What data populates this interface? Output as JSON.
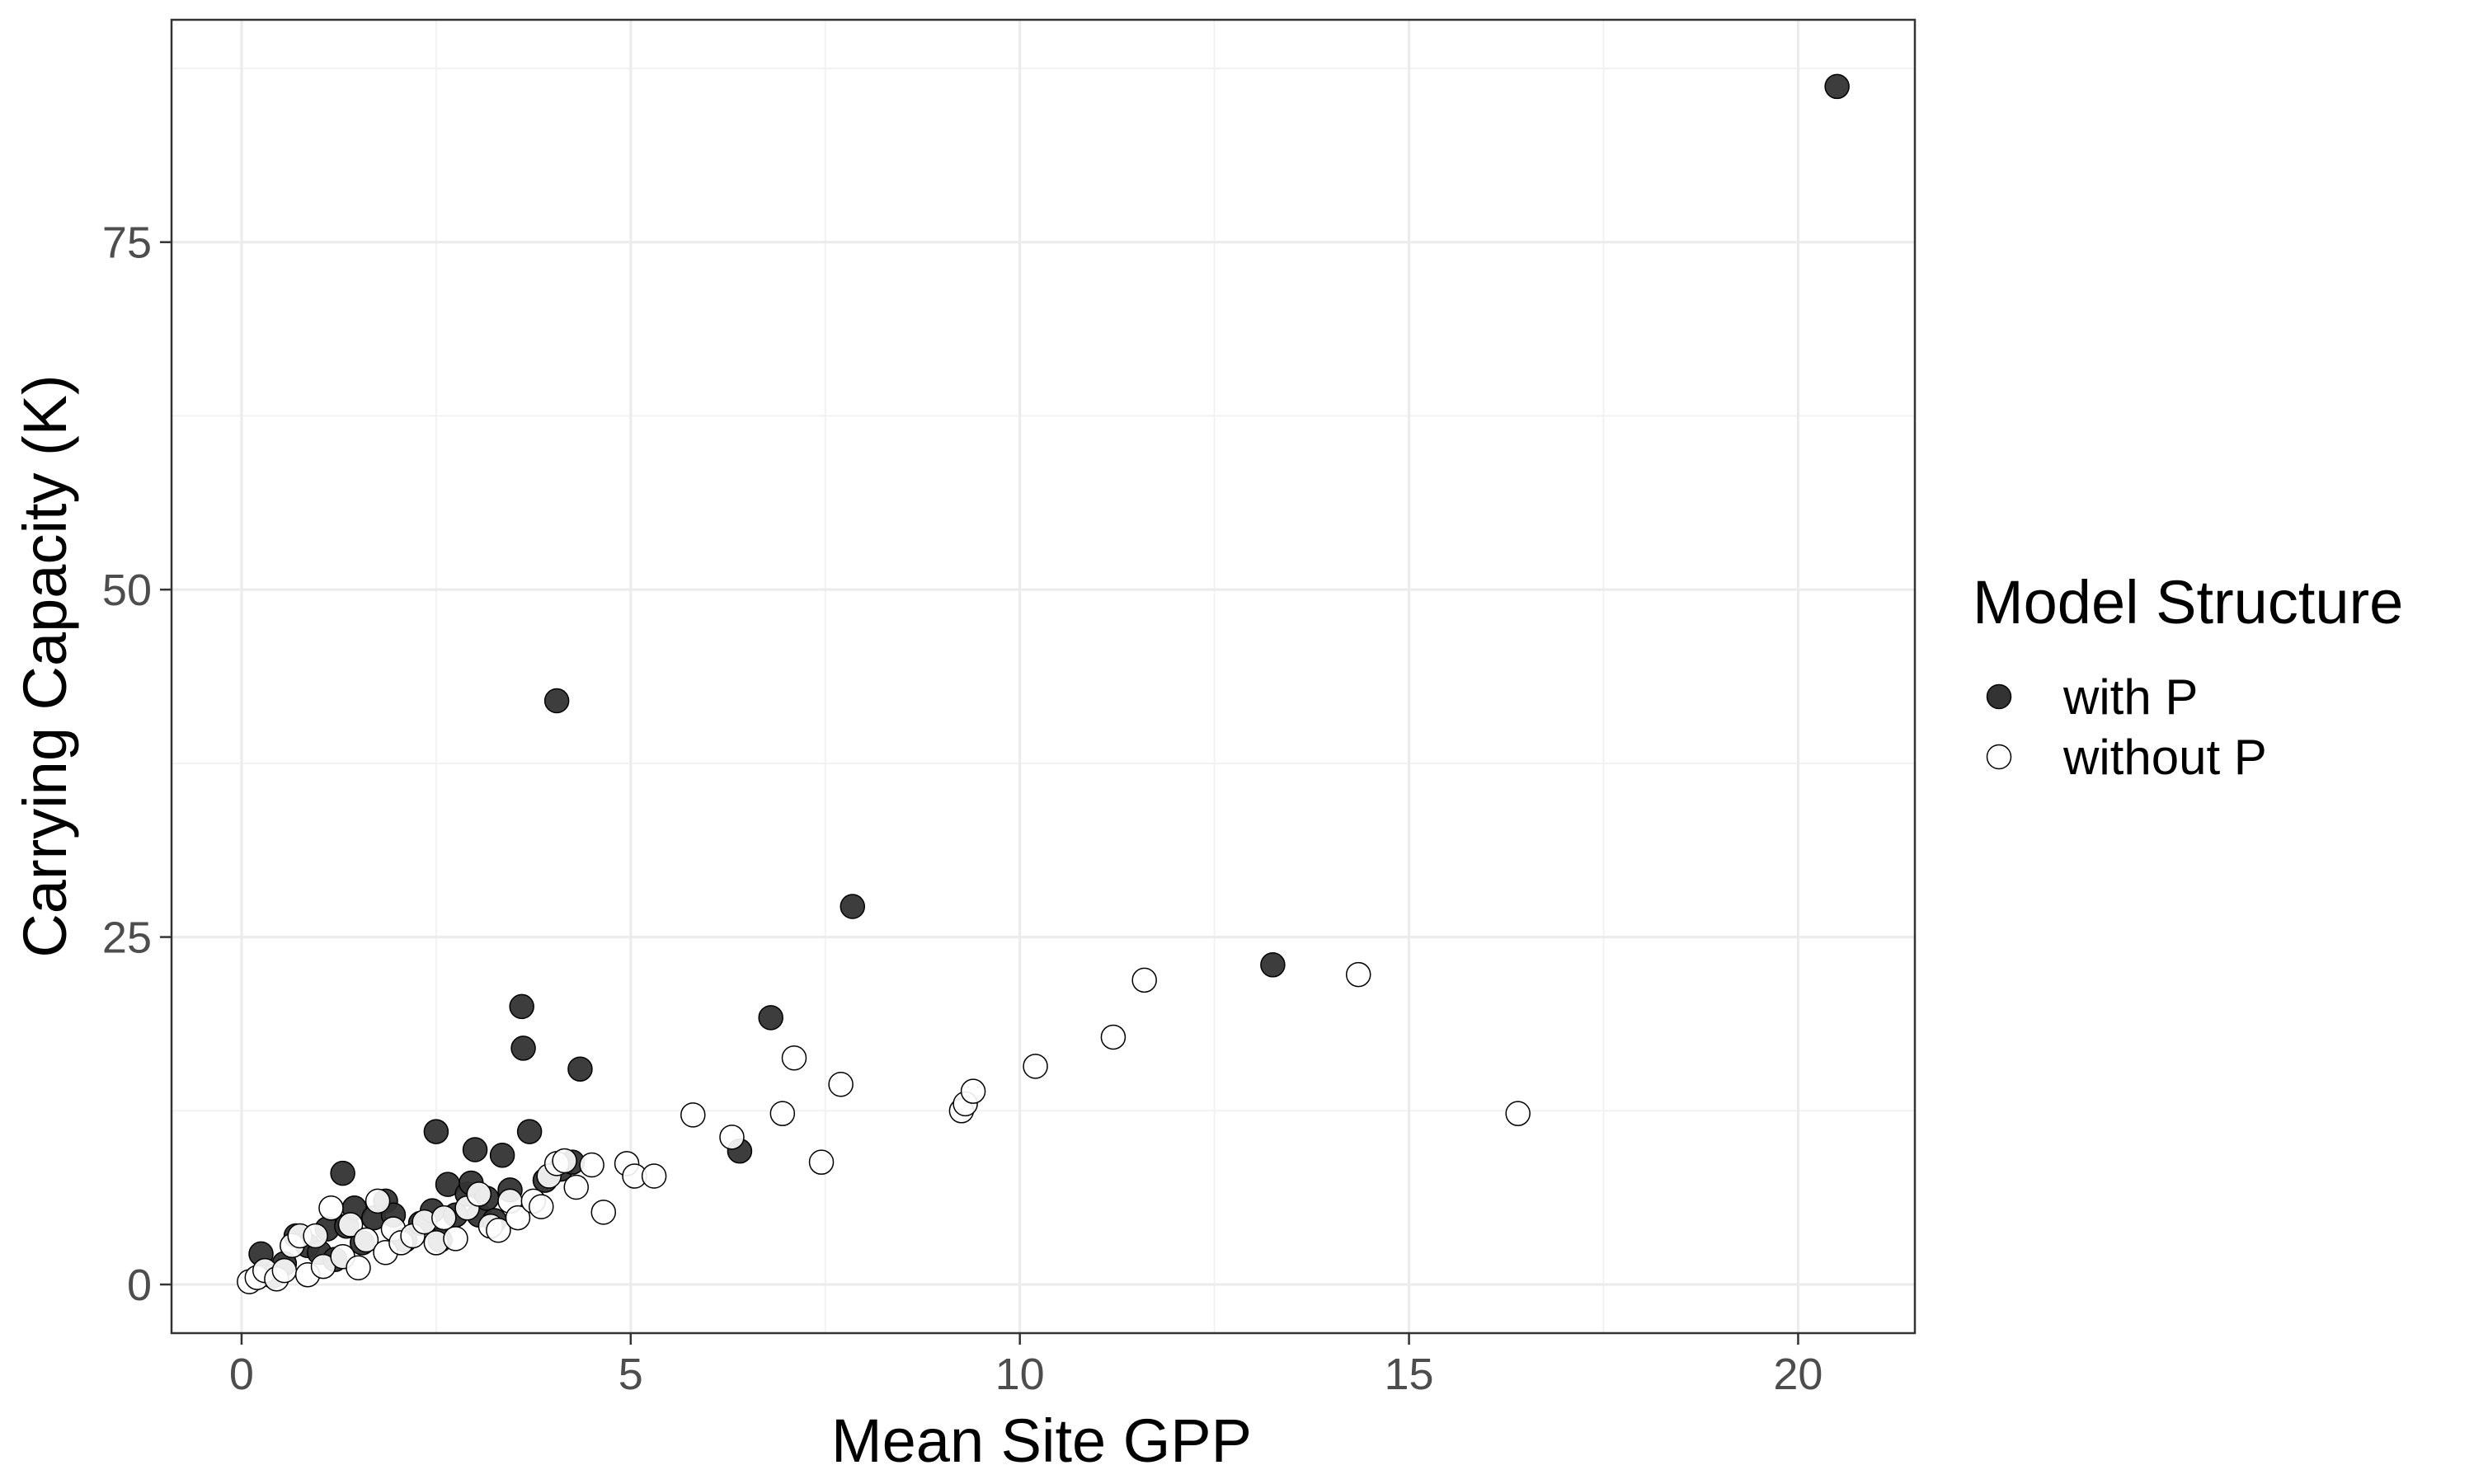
{
  "chart_data": {
    "type": "scatter",
    "xlabel": "Mean Site GPP",
    "ylabel": "Carrying Capacity (K)",
    "xlim": [
      -0.9,
      21.5
    ],
    "ylim": [
      -3.5,
      91
    ],
    "x_ticks": [
      0,
      5,
      10,
      15,
      20
    ],
    "x_tick_labels": [
      "0",
      "5",
      "10",
      "15",
      "20"
    ],
    "y_ticks": [
      0,
      25,
      50,
      75
    ],
    "y_tick_labels": [
      "0",
      "25",
      "50",
      "75"
    ],
    "grid": true,
    "legend": {
      "title": "Model Structure",
      "placement": "right"
    },
    "series": [
      {
        "name": "with P",
        "fill": "#333333",
        "stroke": "#000000",
        "points": [
          [
            0.25,
            2.2
          ],
          [
            0.4,
            0.6
          ],
          [
            0.55,
            1.5
          ],
          [
            0.7,
            3.5
          ],
          [
            0.85,
            2.8
          ],
          [
            1.0,
            2.3
          ],
          [
            1.1,
            4.0
          ],
          [
            1.2,
            1.8
          ],
          [
            1.3,
            8.0
          ],
          [
            1.35,
            4.2
          ],
          [
            1.45,
            5.5
          ],
          [
            1.55,
            3.0
          ],
          [
            1.7,
            4.8
          ],
          [
            1.85,
            6.0
          ],
          [
            1.95,
            5.0
          ],
          [
            2.1,
            3.2
          ],
          [
            2.3,
            4.4
          ],
          [
            2.45,
            5.3
          ],
          [
            2.5,
            11.0
          ],
          [
            2.55,
            3.2
          ],
          [
            2.65,
            7.2
          ],
          [
            2.75,
            5.0
          ],
          [
            2.9,
            6.5
          ],
          [
            2.95,
            7.3
          ],
          [
            3.05,
            5.0
          ],
          [
            3.0,
            9.7
          ],
          [
            3.15,
            6.2
          ],
          [
            3.25,
            4.6
          ],
          [
            3.35,
            9.3
          ],
          [
            3.45,
            6.8
          ],
          [
            3.6,
            20.0
          ],
          [
            3.62,
            17.0
          ],
          [
            3.7,
            11.0
          ],
          [
            3.9,
            7.5
          ],
          [
            4.05,
            42.0
          ],
          [
            4.1,
            8.3
          ],
          [
            4.25,
            8.8
          ],
          [
            4.35,
            15.5
          ],
          [
            6.4,
            9.6
          ],
          [
            6.8,
            19.2
          ],
          [
            7.85,
            27.2
          ],
          [
            13.25,
            23.0
          ],
          [
            20.5,
            86.2
          ]
        ]
      },
      {
        "name": "without P",
        "fill": "#ffffff",
        "stroke": "#000000",
        "points": [
          [
            0.1,
            0.2
          ],
          [
            0.2,
            0.5
          ],
          [
            0.3,
            1.0
          ],
          [
            0.45,
            0.4
          ],
          [
            0.55,
            1.0
          ],
          [
            0.65,
            2.8
          ],
          [
            0.75,
            3.5
          ],
          [
            0.85,
            0.7
          ],
          [
            0.95,
            3.5
          ],
          [
            1.05,
            1.3
          ],
          [
            1.15,
            5.5
          ],
          [
            1.3,
            2.0
          ],
          [
            1.4,
            4.3
          ],
          [
            1.5,
            1.2
          ],
          [
            1.6,
            3.2
          ],
          [
            1.75,
            6.0
          ],
          [
            1.85,
            2.3
          ],
          [
            1.95,
            4.0
          ],
          [
            2.05,
            3.0
          ],
          [
            2.2,
            3.5
          ],
          [
            2.35,
            4.5
          ],
          [
            2.5,
            3.0
          ],
          [
            2.6,
            4.8
          ],
          [
            2.75,
            3.3
          ],
          [
            2.9,
            5.5
          ],
          [
            3.05,
            6.5
          ],
          [
            3.2,
            4.2
          ],
          [
            3.3,
            3.9
          ],
          [
            3.45,
            6.0
          ],
          [
            3.55,
            4.8
          ],
          [
            3.75,
            6.0
          ],
          [
            3.85,
            5.6
          ],
          [
            3.95,
            7.8
          ],
          [
            4.05,
            8.7
          ],
          [
            4.15,
            8.9
          ],
          [
            4.3,
            7.0
          ],
          [
            4.5,
            8.6
          ],
          [
            4.65,
            5.2
          ],
          [
            4.95,
            8.7
          ],
          [
            5.05,
            7.8
          ],
          [
            5.3,
            7.8
          ],
          [
            5.8,
            12.2
          ],
          [
            6.3,
            10.6
          ],
          [
            6.95,
            12.3
          ],
          [
            7.1,
            16.3
          ],
          [
            7.45,
            8.8
          ],
          [
            7.7,
            14.4
          ],
          [
            9.25,
            12.5
          ],
          [
            9.3,
            13.0
          ],
          [
            9.4,
            13.9
          ],
          [
            10.2,
            15.7
          ],
          [
            11.2,
            17.8
          ],
          [
            11.6,
            21.9
          ],
          [
            14.35,
            22.3
          ],
          [
            16.4,
            12.3
          ]
        ]
      }
    ]
  }
}
